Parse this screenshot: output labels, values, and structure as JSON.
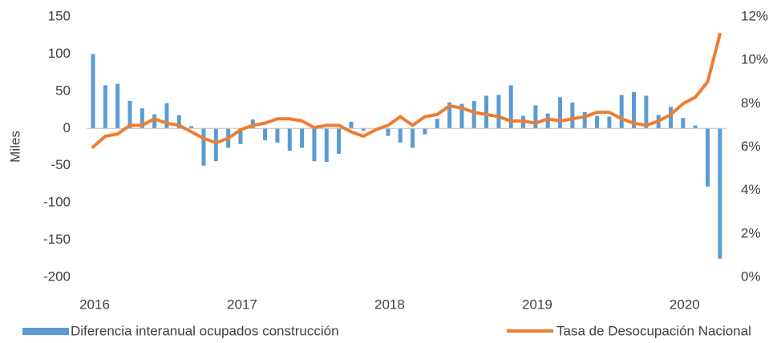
{
  "chart_data": {
    "type": "bar",
    "ylabel": "Miles",
    "categories": [
      "2016",
      null,
      null,
      null,
      null,
      null,
      null,
      null,
      null,
      null,
      null,
      null,
      "2017",
      null,
      null,
      null,
      null,
      null,
      null,
      null,
      null,
      null,
      null,
      null,
      "2018",
      null,
      null,
      null,
      null,
      null,
      null,
      null,
      null,
      null,
      null,
      null,
      "2019",
      null,
      null,
      null,
      null,
      null,
      null,
      null,
      null,
      null,
      null,
      null,
      "2020",
      null,
      null,
      null
    ],
    "series": [
      {
        "name": "Diferencia interanual ocupados construcción",
        "type": "bar",
        "color": "#5b9bd5",
        "values": [
          100,
          58,
          60,
          37,
          27,
          19,
          34,
          18,
          3,
          -50,
          -44,
          -26,
          -21,
          12,
          -16,
          -19,
          -30,
          -26,
          -44,
          -45,
          -34,
          9,
          -3,
          0,
          -10,
          -19,
          -26,
          -8,
          13,
          35,
          33,
          37,
          44,
          45,
          58,
          17,
          31,
          20,
          42,
          35,
          22,
          17,
          16,
          45,
          49,
          44,
          18,
          29,
          14,
          4,
          -78,
          -175
        ]
      },
      {
        "name": "Tasa de Desocupación Nacional",
        "type": "line",
        "axis": "y2",
        "color": "#ed7d31",
        "values": [
          6.0,
          6.5,
          6.6,
          7.0,
          7.0,
          7.3,
          7.1,
          7.0,
          6.7,
          6.4,
          6.2,
          6.4,
          6.8,
          7.0,
          7.1,
          7.3,
          7.3,
          7.2,
          6.9,
          7.0,
          7.0,
          6.7,
          6.5,
          6.8,
          7.0,
          7.4,
          7.0,
          7.4,
          7.5,
          7.9,
          7.8,
          7.6,
          7.5,
          7.4,
          7.2,
          7.2,
          7.1,
          7.3,
          7.2,
          7.3,
          7.4,
          7.6,
          7.6,
          7.3,
          7.1,
          7.0,
          7.2,
          7.5,
          8.0,
          8.3,
          9.0,
          11.2
        ]
      }
    ],
    "ylim": [
      -200,
      150
    ],
    "yticks": [
      -200,
      -150,
      -100,
      -50,
      0,
      50,
      100,
      150
    ],
    "y2lim": [
      0,
      12
    ],
    "y2ticks": [
      {
        "value": 0,
        "label": "0%"
      },
      {
        "value": 2,
        "label": "2%"
      },
      {
        "value": 4,
        "label": "4%"
      },
      {
        "value": 6,
        "label": "6%"
      },
      {
        "value": 8,
        "label": "8%"
      },
      {
        "value": 10,
        "label": "10%"
      },
      {
        "value": 12,
        "label": "12%"
      }
    ],
    "legend": "bottom"
  }
}
